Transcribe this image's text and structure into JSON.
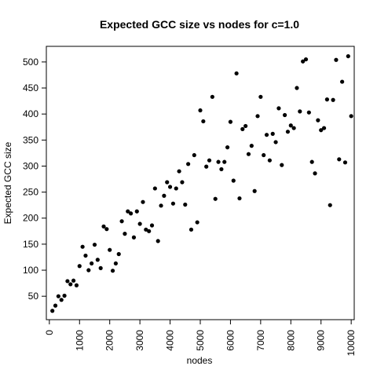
{
  "chart_data": {
    "type": "scatter",
    "title": "Expected GCC size vs nodes for c=1.0",
    "xlabel": "nodes",
    "ylabel": "Expected GCC size",
    "xlim": [
      -100,
      10100
    ],
    "ylim": [
      5,
      530
    ],
    "x_ticks": [
      0,
      1000,
      2000,
      3000,
      4000,
      5000,
      6000,
      7000,
      8000,
      9000,
      10000
    ],
    "y_ticks": [
      50,
      100,
      150,
      200,
      250,
      300,
      350,
      400,
      450,
      500
    ],
    "x_tick_labels": [
      "0",
      "1000",
      "2000",
      "3000",
      "4000",
      "5000",
      "6000",
      "7000",
      "8000",
      "9000",
      "10000"
    ],
    "y_tick_labels": [
      "50",
      "100",
      "150",
      "200",
      "250",
      "300",
      "350",
      "400",
      "450",
      "500"
    ],
    "grid": false,
    "legend": "none",
    "point_color": "#000000",
    "x": [
      100,
      200,
      300,
      400,
      500,
      600,
      700,
      800,
      900,
      1000,
      1100,
      1200,
      1300,
      1400,
      1500,
      1600,
      1700,
      1800,
      1900,
      2000,
      2100,
      2200,
      2300,
      2400,
      2500,
      2600,
      2700,
      2800,
      2900,
      3000,
      3100,
      3200,
      3300,
      3400,
      3500,
      3600,
      3700,
      3800,
      3900,
      4000,
      4100,
      4200,
      4300,
      4400,
      4500,
      4600,
      4700,
      4800,
      4900,
      5000,
      5100,
      5200,
      5300,
      5400,
      5500,
      5600,
      5700,
      5800,
      5900,
      6000,
      6100,
      6200,
      6300,
      6400,
      6500,
      6600,
      6700,
      6800,
      6900,
      7000,
      7100,
      7200,
      7300,
      7400,
      7500,
      7600,
      7700,
      7800,
      7900,
      8000,
      8100,
      8200,
      8300,
      8400,
      8500,
      8600,
      8700,
      8800,
      8900,
      9000,
      9100,
      9200,
      9300,
      9400,
      9500,
      9600,
      9700,
      9800,
      9900,
      10000
    ],
    "y": [
      22,
      32,
      50,
      43,
      51,
      79,
      73,
      80,
      71,
      108,
      145,
      128,
      100,
      113,
      149,
      120,
      104,
      184,
      179,
      139,
      99,
      113,
      131,
      194,
      170,
      213,
      209,
      163,
      213,
      189,
      231,
      178,
      175,
      186,
      257,
      156,
      224,
      243,
      269,
      260,
      228,
      257,
      290,
      269,
      226,
      304,
      178,
      321,
      192,
      407,
      386,
      299,
      311,
      433,
      237,
      308,
      294,
      308,
      336,
      385,
      272,
      478,
      238,
      371,
      377,
      323,
      339,
      252,
      396,
      433,
      321,
      360,
      311,
      362,
      346,
      411,
      302,
      398,
      366,
      378,
      373,
      450,
      405,
      501,
      505,
      403,
      308,
      286,
      388,
      369,
      373,
      428,
      225,
      427,
      504,
      313,
      462,
      307,
      511,
      396
    ]
  }
}
